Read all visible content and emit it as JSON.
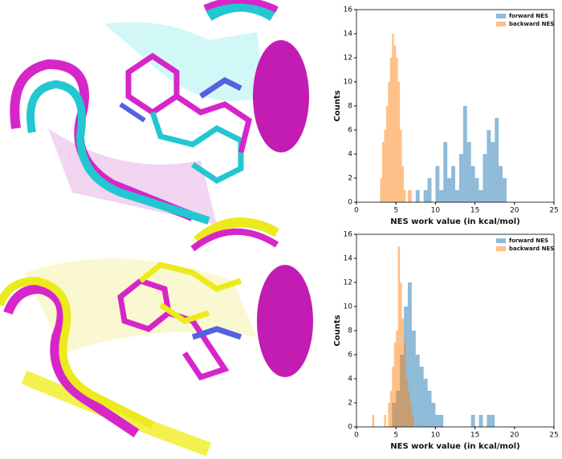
{
  "chart_data": [
    {
      "type": "histogram",
      "xlabel": "NES work value (in kcal/mol)",
      "ylabel": "Counts",
      "xlim": [
        0,
        25
      ],
      "xticks": [
        0,
        5,
        10,
        15,
        20,
        25
      ],
      "ylim": [
        0,
        16
      ],
      "yticks": [
        0,
        2,
        4,
        6,
        8,
        10,
        12,
        14,
        16
      ],
      "legend": "upper right",
      "series": [
        {
          "name": "forward NES",
          "color": "#1f77b4",
          "bins": [
            7.5,
            8,
            8.5,
            9,
            9.5,
            10,
            10.5,
            11,
            11.5,
            12,
            12.5,
            13,
            13.5,
            14,
            14.5,
            15,
            15.5,
            16,
            16.5,
            17,
            17.5,
            18,
            18.5,
            19
          ],
          "values": [
            1,
            0,
            1,
            2,
            0,
            3,
            1,
            5,
            2,
            3,
            1,
            4,
            8,
            5,
            3,
            2,
            1,
            4,
            6,
            5,
            7,
            3,
            2
          ]
        },
        {
          "name": "backward NES",
          "color": "#ff7f0e",
          "bins": [
            3,
            3.25,
            3.5,
            3.75,
            4,
            4.25,
            4.5,
            4.75,
            5,
            5.25,
            5.5,
            5.75,
            6,
            6.25,
            6.5,
            6.75,
            7
          ],
          "values": [
            2,
            5,
            6,
            8,
            10,
            12,
            14,
            13,
            12,
            10,
            6,
            3,
            1,
            0,
            1,
            1
          ]
        }
      ]
    },
    {
      "type": "histogram",
      "xlabel": "NES work value (in kcal/mol)",
      "ylabel": "Counts",
      "xlim": [
        0,
        25
      ],
      "xticks": [
        0,
        5,
        10,
        15,
        20,
        25
      ],
      "ylim": [
        0,
        16
      ],
      "yticks": [
        0,
        2,
        4,
        6,
        8,
        10,
        12,
        14,
        16
      ],
      "legend": "upper right",
      "series": [
        {
          "name": "forward NES",
          "color": "#1f77b4",
          "bins": [
            4.5,
            5,
            5.5,
            6,
            6.5,
            7,
            7.5,
            8,
            8.5,
            9,
            9.5,
            10,
            10.5,
            11,
            11.5,
            12,
            12.5,
            13,
            13.5,
            14,
            14.5,
            15,
            15.5,
            16,
            16.5,
            17,
            17.5,
            18
          ],
          "values": [
            2,
            3,
            6,
            10,
            12,
            8,
            6,
            5,
            4,
            3,
            2,
            1,
            1,
            0,
            0,
            0,
            0,
            0,
            0,
            0,
            1,
            0,
            1,
            0,
            1,
            1,
            0
          ]
        },
        {
          "name": "backward NES",
          "color": "#ff7f0e",
          "bins": [
            2,
            2.25,
            2.5,
            2.75,
            3,
            3.25,
            3.5,
            3.75,
            4,
            4.25,
            4.5,
            4.75,
            5,
            5.25,
            5.5,
            5.75,
            6,
            6.25,
            6.5,
            6.75,
            7,
            7.25,
            7.5,
            7.75,
            8
          ],
          "values": [
            1,
            0,
            0,
            0,
            0,
            0,
            1,
            0,
            2,
            3,
            5,
            7,
            8,
            15,
            12,
            9,
            7,
            4,
            3,
            2,
            1,
            0,
            0,
            0
          ]
        }
      ]
    }
  ]
}
